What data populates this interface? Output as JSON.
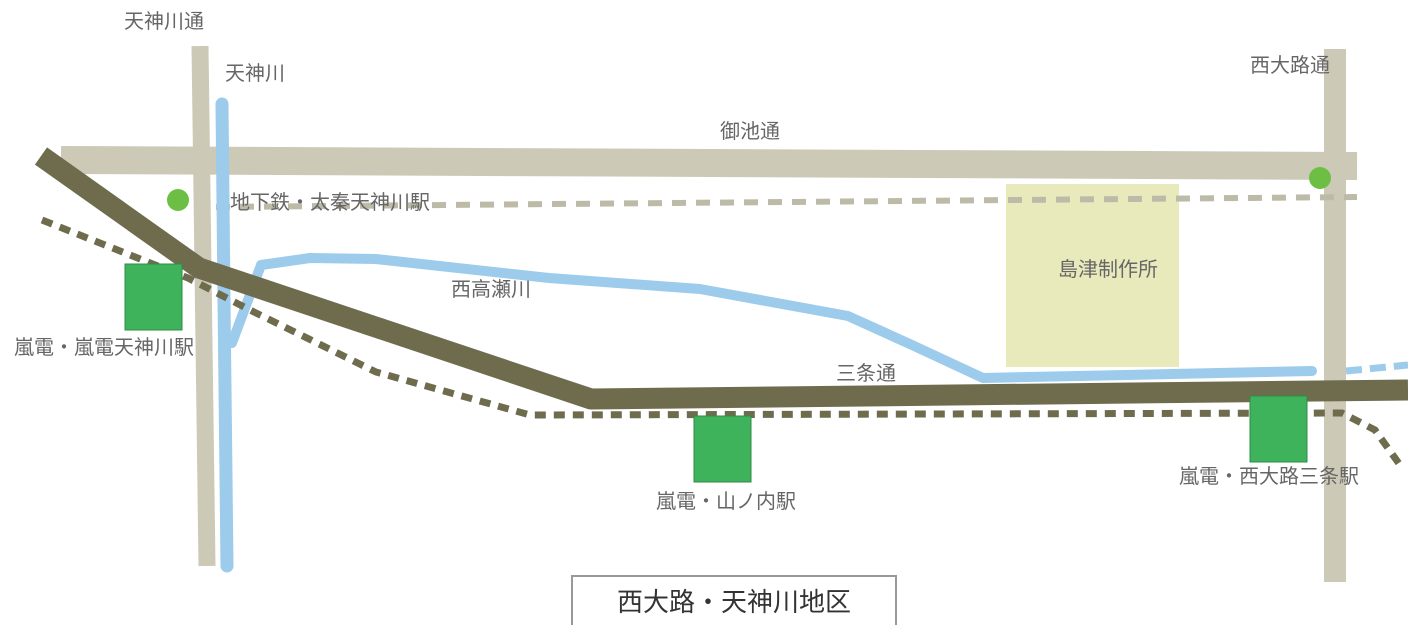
{
  "title": "西大路・天神川地区",
  "colors": {
    "road": "#cdc9b7",
    "river": "#9ccbec",
    "rail": "#6f6c4e",
    "subway_dotted": "#bdbba8",
    "station": "#3eb35c",
    "subway_station": "#6cbe45",
    "landmark": "#e9eabb"
  },
  "labels": {
    "tenjingawa_dori": "天神川通",
    "tenjingawa": "天神川",
    "nishioji_dori": "西大路通",
    "oike_dori": "御池通",
    "subway_station": "地下鉄・太秦天神川駅",
    "takasegawa": "西高瀬川",
    "shimadzu": "島津制作所",
    "sanjo_dori": "三条通",
    "randen_tenjingawa": "嵐電・嵐電天神川駅",
    "randen_yamanouchi": "嵐電・山ノ内駅",
    "randen_nishioji": "嵐電・西大路三条駅"
  }
}
